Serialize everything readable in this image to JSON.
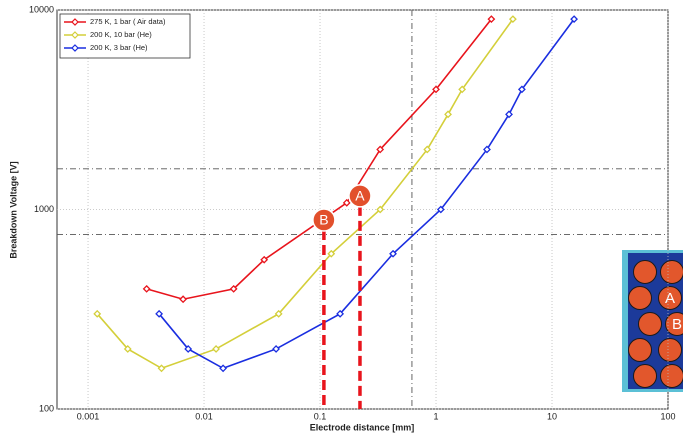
{
  "chart_data": {
    "type": "line",
    "x_label": "Electrode distance [mm]",
    "y_label": "Breakdown Voltage [V]",
    "x_log": true,
    "y_log": true,
    "grid": true,
    "xlim": [
      0.00054,
      100
    ],
    "ylim": [
      100,
      10000
    ],
    "xticks": [
      0.001,
      0.01,
      0.1,
      1,
      10,
      100
    ],
    "yticks": [
      100,
      1000,
      10000
    ],
    "legend": "upper left",
    "series": [
      {
        "name": "275 K, 1 bar ( Air data)",
        "color": "#e8141c",
        "x": [
          0.0032,
          0.0066,
          0.018,
          0.033,
          0.17,
          0.33,
          1,
          3
        ],
        "values": [
          400,
          355,
          400,
          560,
          1080,
          2000,
          4000,
          9000
        ]
      },
      {
        "name": "200 K, 10 bar (He)",
        "color": "#d4cf3a",
        "x": [
          0.0012,
          0.0022,
          0.0043,
          0.0127,
          0.044,
          0.125,
          0.33,
          0.84,
          1.27,
          1.68,
          4.6
        ],
        "values": [
          300,
          200,
          160,
          200,
          300,
          600,
          1000,
          2000,
          3000,
          4000,
          9000
        ]
      },
      {
        "name": "200 K, 3 bar (He)",
        "color": "#1a2ee0",
        "x": [
          0.0041,
          0.0073,
          0.0146,
          0.0418,
          0.149,
          0.426,
          1.1,
          2.75,
          4.26,
          5.5,
          15.5
        ],
        "values": [
          300,
          200,
          160,
          200,
          300,
          600,
          1000,
          2000,
          3000,
          4000,
          9000
        ]
      }
    ],
    "h_lines": [
      1600,
      750
    ],
    "v_lines": [
      0.62
    ],
    "markers": [
      {
        "label": "A",
        "x": 0.221,
        "y": 1170
      },
      {
        "label": "B",
        "x": 0.108,
        "y": 886
      }
    ],
    "inset_labels": [
      "A",
      "B"
    ]
  }
}
